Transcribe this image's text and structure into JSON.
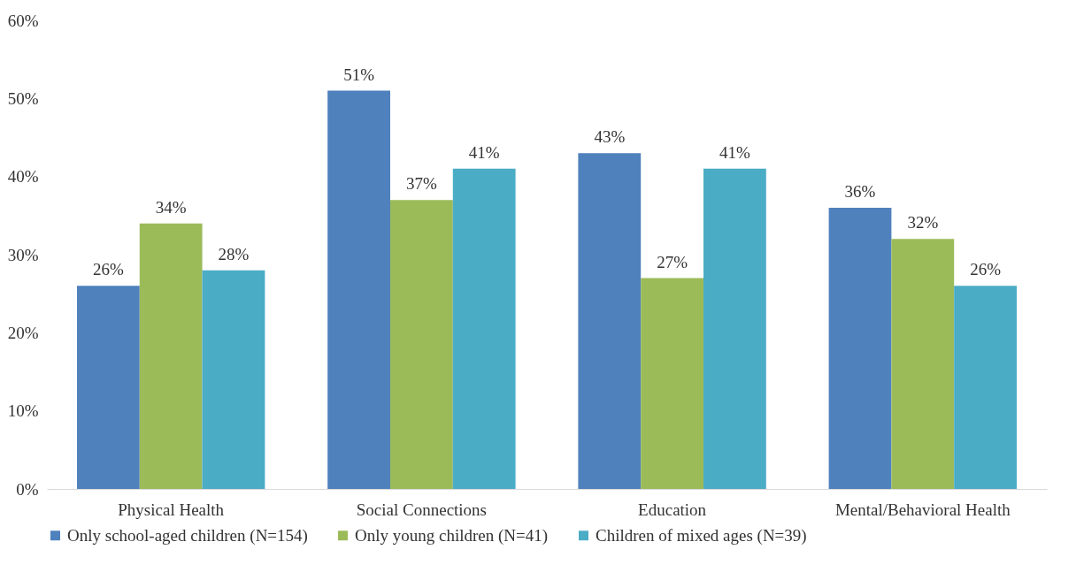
{
  "chart_data": {
    "type": "bar",
    "categories": [
      "Physical Health",
      "Social Connections",
      "Education",
      "Mental/Behavioral Health"
    ],
    "series": [
      {
        "name": "Only school-aged children (N=154)",
        "color": "#4f81bd",
        "values": [
          26,
          51,
          43,
          36
        ],
        "value_labels": [
          "26%",
          "51%",
          "43%",
          "36%"
        ]
      },
      {
        "name": "Only young children (N=41)",
        "color": "#9bbb59",
        "values": [
          34,
          37,
          27,
          32
        ],
        "value_labels": [
          "34%",
          "37%",
          "27%",
          "32%"
        ]
      },
      {
        "name": "Children of mixed ages (N=39)",
        "color": "#4bacc6",
        "values": [
          28,
          41,
          41,
          26
        ],
        "value_labels": [
          "28%",
          "41%",
          "41%",
          "26%"
        ]
      }
    ],
    "ylim": [
      0,
      60
    ],
    "yticks": [
      {
        "value": 0,
        "label": "0%"
      },
      {
        "value": 10,
        "label": "10%"
      },
      {
        "value": 20,
        "label": "20%"
      },
      {
        "value": 30,
        "label": "30%"
      },
      {
        "value": 40,
        "label": "40%"
      },
      {
        "value": 50,
        "label": "50%"
      },
      {
        "value": 60,
        "label": "60%"
      }
    ],
    "grid": false,
    "legend": "bottom"
  }
}
